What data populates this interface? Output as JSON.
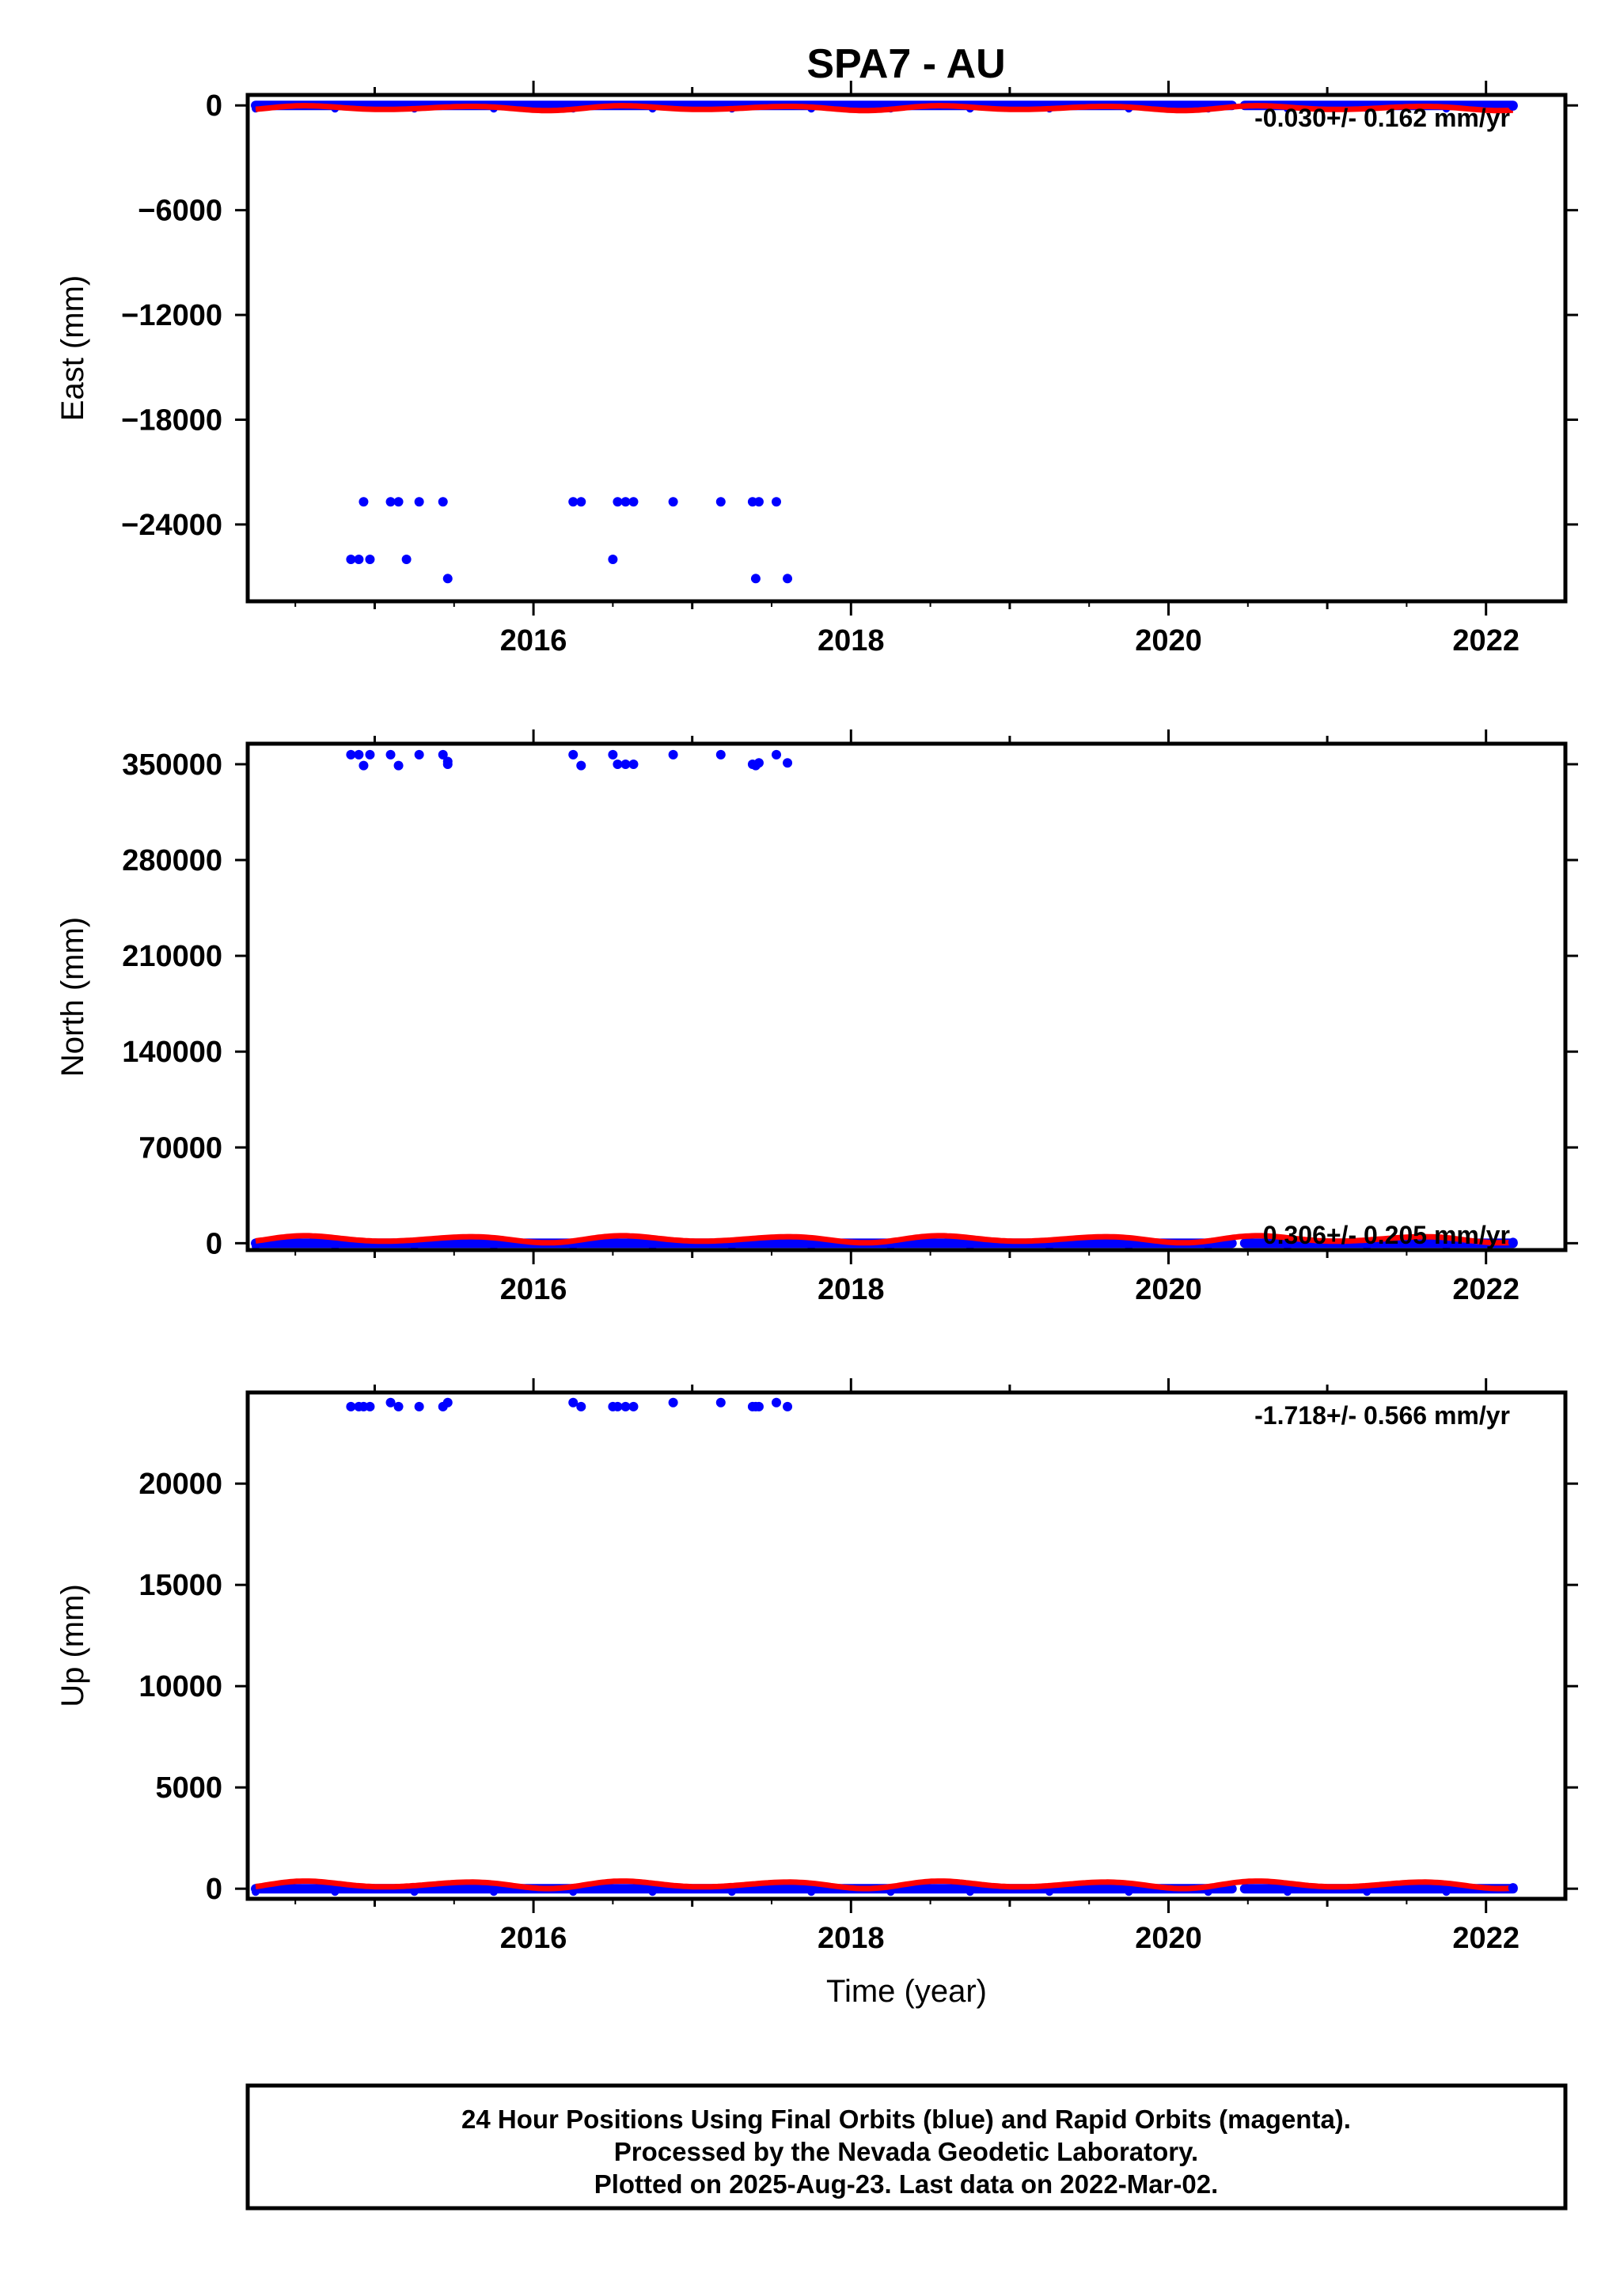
{
  "title": "SPA7 - AU",
  "colors": {
    "data": "#0000ff",
    "model": "#ff0000",
    "frame": "#000000"
  },
  "chart_data": [
    {
      "type": "scatter",
      "name": "east",
      "ylabel": "East (mm)",
      "xlabel": "",
      "xlim": [
        2014.2,
        2022.5
      ],
      "ylim": [
        -28400,
        600
      ],
      "yticks": [
        0,
        -6000,
        -12000,
        -18000,
        -24000
      ],
      "ytick_labels": [
        "0",
        "−6000",
        "−12000",
        "−18000",
        "−24000"
      ],
      "xticks": [
        2016,
        2018,
        2020,
        2022
      ],
      "xtick_labels": [
        "2016",
        "2018",
        "2020",
        "2022"
      ],
      "rate_text": "-0.030+/- 0.162 mm/yr",
      "baseline": {
        "x_start": 2014.25,
        "x_end": 2022.17,
        "gaps": [
          [
            2020.4,
            2020.48
          ]
        ]
      },
      "model": {
        "level": -150,
        "amplitude": 150,
        "x_start": 2014.25,
        "x_end": 2022.17
      },
      "outliers": {
        "x": [
          2014.85,
          2014.9,
          2014.93,
          2014.97,
          2015.1,
          2015.15,
          2015.2,
          2015.28,
          2015.43,
          2015.46,
          2016.25,
          2016.3,
          2016.5,
          2016.53,
          2016.58,
          2016.63,
          2016.88,
          2017.18,
          2017.38,
          2017.42,
          2017.53,
          2017.6,
          2017.4
        ],
        "y": [
          -26000,
          -26000,
          -22700,
          -26000,
          -22700,
          -22700,
          -26000,
          -22700,
          -22700,
          -27100,
          -22700,
          -22700,
          -26000,
          -22700,
          -22700,
          -22700,
          -22700,
          -22700,
          -22700,
          -22700,
          -22700,
          -27100,
          -27100
        ]
      }
    },
    {
      "type": "scatter",
      "name": "north",
      "ylabel": "North (mm)",
      "xlabel": "",
      "xlim": [
        2014.2,
        2022.5
      ],
      "ylim": [
        -5000,
        365000
      ],
      "yticks": [
        0,
        70000,
        140000,
        210000,
        280000,
        350000
      ],
      "ytick_labels": [
        "0",
        "70000",
        "140000",
        "210000",
        "280000",
        "350000"
      ],
      "xticks": [
        2016,
        2018,
        2020,
        2022
      ],
      "xtick_labels": [
        "2016",
        "2018",
        "2020",
        "2022"
      ],
      "rate_text": "0.306+/- 0.205 mm/yr",
      "baseline": {
        "x_start": 2014.25,
        "x_end": 2022.17,
        "gaps": [
          [
            2020.4,
            2020.48
          ]
        ]
      },
      "model": {
        "level": 3000,
        "amplitude": 2800,
        "x_start": 2014.25,
        "x_end": 2022.17
      },
      "outliers": {
        "x": [
          2014.85,
          2014.9,
          2014.93,
          2014.97,
          2015.1,
          2015.15,
          2015.28,
          2015.43,
          2015.46,
          2016.25,
          2016.3,
          2016.5,
          2016.53,
          2016.58,
          2016.63,
          2016.88,
          2017.18,
          2017.38,
          2017.42,
          2017.53,
          2017.6,
          2017.4,
          2015.46
        ],
        "y": [
          357000,
          357000,
          349000,
          357000,
          357000,
          349000,
          357000,
          357000,
          352000,
          357000,
          349000,
          357000,
          350000,
          350000,
          350000,
          357000,
          357000,
          350000,
          351000,
          357000,
          351000,
          349000,
          350000
        ]
      }
    },
    {
      "type": "scatter",
      "name": "up",
      "ylabel": "Up (mm)",
      "xlabel": "Time (year)",
      "xlim": [
        2014.2,
        2022.5
      ],
      "ylim": [
        -500,
        24500
      ],
      "yticks": [
        0,
        5000,
        10000,
        15000,
        20000
      ],
      "ytick_labels": [
        "0",
        "5000",
        "10000",
        "15000",
        "20000"
      ],
      "xticks": [
        2016,
        2018,
        2020,
        2022
      ],
      "xtick_labels": [
        "2016",
        "2018",
        "2020",
        "2022"
      ],
      "rate_text": "-1.718+/- 0.566 mm/yr",
      "baseline": {
        "x_start": 2014.25,
        "x_end": 2022.17,
        "gaps": [
          [
            2020.4,
            2020.48
          ]
        ]
      },
      "model": {
        "level": 200,
        "amplitude": 200,
        "x_start": 2014.25,
        "x_end": 2022.17
      },
      "outliers": {
        "x": [
          2014.85,
          2014.9,
          2014.93,
          2014.97,
          2015.1,
          2015.15,
          2015.28,
          2015.43,
          2015.46,
          2016.25,
          2016.3,
          2016.5,
          2016.53,
          2016.58,
          2016.63,
          2016.88,
          2017.18,
          2017.38,
          2017.42,
          2017.53,
          2017.6,
          2017.4
        ],
        "y": [
          23800,
          23800,
          23800,
          23800,
          24000,
          23800,
          23800,
          23800,
          24000,
          24000,
          23800,
          23800,
          23800,
          23800,
          23800,
          24000,
          24000,
          23800,
          23800,
          24000,
          23800,
          23800
        ]
      }
    }
  ],
  "caption": {
    "line1": "24 Hour Positions Using Final Orbits (blue) and Rapid Orbits (magenta).",
    "line2": "Processed by the Nevada Geodetic Laboratory.",
    "line3": "Plotted on 2025-Aug-23. Last data on 2022-Mar-02."
  }
}
